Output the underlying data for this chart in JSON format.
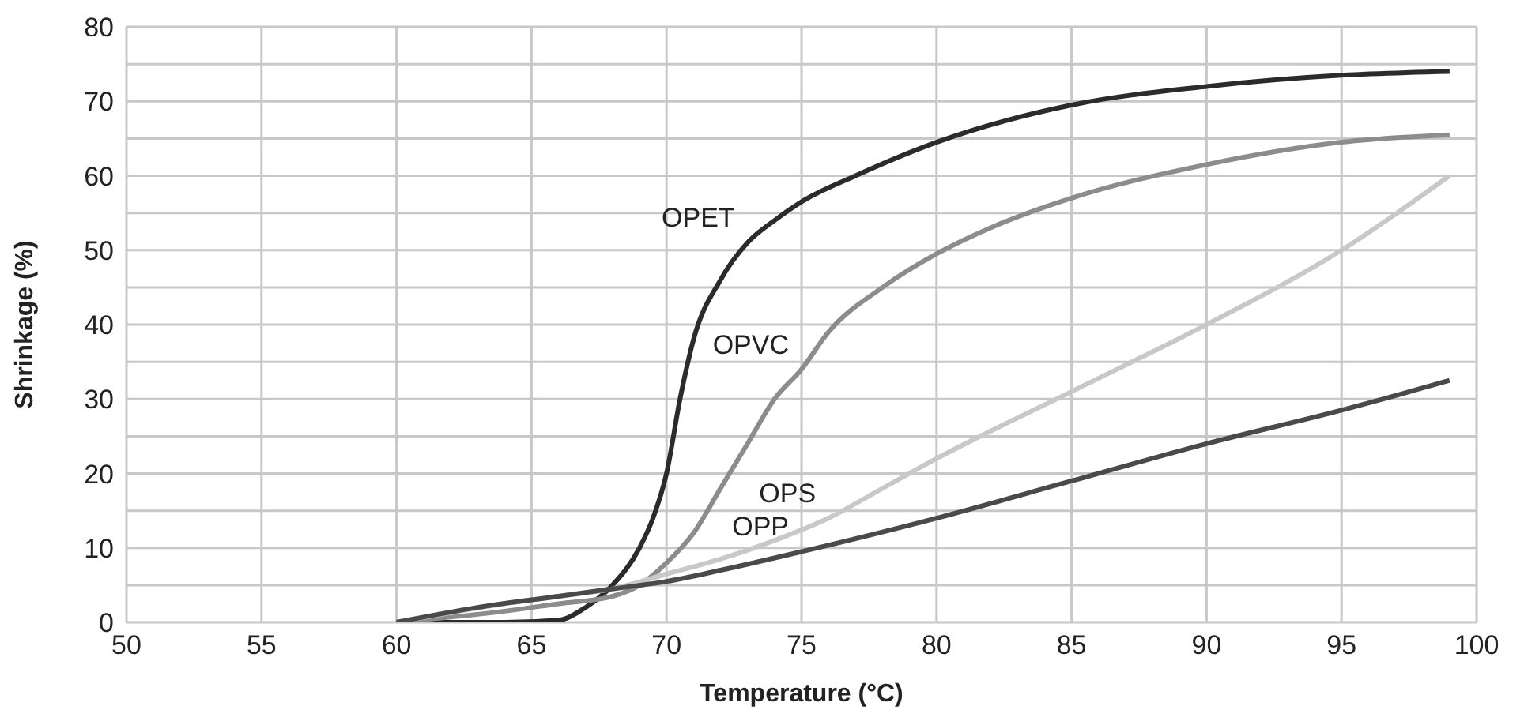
{
  "chart_data": {
    "type": "line",
    "xlabel": "Temperature (°C)",
    "ylabel": "Shrinkage (%)",
    "xlim": [
      50,
      100
    ],
    "xticks": [
      50,
      55,
      60,
      65,
      70,
      75,
      80,
      85,
      90,
      95,
      100
    ],
    "ylim": [
      0,
      80
    ],
    "yticks": [
      0,
      {
        "value": 5,
        "label": null
      },
      10,
      {
        "value": 15,
        "label": null
      },
      20,
      {
        "value": 25,
        "label": null
      },
      30,
      {
        "value": 35,
        "label": null
      },
      40,
      {
        "value": 45,
        "label": null
      },
      50,
      {
        "value": 55,
        "label": null
      },
      60,
      {
        "value": 65,
        "label": null
      },
      70,
      {
        "value": 75,
        "label": null
      },
      80
    ],
    "grid": true,
    "marker": "none",
    "line_style": "solid",
    "series": [
      {
        "name": "OPET",
        "color": "#2b2b2b",
        "x": [
          60,
          64,
          66,
          67,
          68,
          69,
          69.5,
          70,
          70.5,
          71,
          72,
          73,
          74,
          75,
          77,
          80,
          85,
          90,
          95,
          99
        ],
        "values": [
          0,
          0,
          0.3,
          2,
          5,
          10,
          14,
          20,
          30,
          38,
          46,
          51,
          54,
          56.5,
          60,
          64.5,
          69.5,
          72,
          73.5,
          74
        ]
      },
      {
        "name": "OPVC",
        "color": "#8c8c8c",
        "x": [
          60,
          64,
          66,
          68,
          69,
          70,
          71,
          72,
          73,
          74,
          75,
          76,
          78,
          80,
          82,
          85,
          90,
          95,
          99
        ],
        "values": [
          0,
          1.5,
          2.5,
          3.5,
          5,
          8,
          12,
          18,
          24,
          30,
          34,
          39,
          45,
          49.5,
          53,
          57,
          61.5,
          64.5,
          65.5
        ]
      },
      {
        "name": "OPS",
        "color": "#c8c8c8",
        "x": [
          60,
          64,
          66,
          68,
          70,
          72,
          74,
          76,
          78,
          80,
          85,
          90,
          95,
          99
        ],
        "values": [
          0,
          2.5,
          3.5,
          4.5,
          6.5,
          8.5,
          11,
          14,
          18,
          22,
          31,
          40,
          50,
          60
        ]
      },
      {
        "name": "OPP",
        "color": "#4a4a4a",
        "x": [
          60,
          63,
          66,
          68,
          70,
          72,
          75,
          80,
          85,
          90,
          95,
          99
        ],
        "values": [
          0,
          2,
          3.5,
          4.5,
          5.5,
          7,
          9.5,
          14,
          19,
          24,
          28.5,
          32.5
        ]
      }
    ]
  }
}
